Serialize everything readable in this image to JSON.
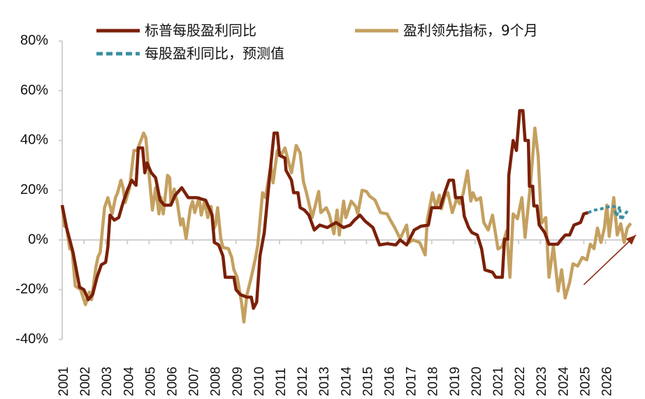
{
  "chart_data": {
    "type": "line",
    "title": "",
    "xlabel": "",
    "ylabel": "",
    "ylim": [
      -40,
      80
    ],
    "xlim": [
      2001,
      2027
    ],
    "y_ticks": [
      "80%",
      "60%",
      "40%",
      "20%",
      "0%",
      "-20%",
      "-40%"
    ],
    "y_tick_values": [
      80,
      60,
      40,
      20,
      0,
      -20,
      -40
    ],
    "x_ticks": [
      "2001",
      "2002",
      "2003",
      "2004",
      "2005",
      "2006",
      "2007",
      "2008",
      "2009",
      "2010",
      "2011",
      "2012",
      "2013",
      "2014",
      "2015",
      "2016",
      "2017",
      "2018",
      "2019",
      "2020",
      "2021",
      "2022",
      "2023",
      "2024",
      "2025",
      "2026"
    ],
    "grid": false,
    "legend_position": "top",
    "series": [
      {
        "name": "标普每股盈利同比",
        "color": "#7B2008",
        "style": "solid",
        "points": [
          [
            2001.0,
            14
          ],
          [
            2001.2,
            5
          ],
          [
            2001.5,
            -5
          ],
          [
            2001.8,
            -19
          ],
          [
            2002.0,
            -20
          ],
          [
            2002.2,
            -24
          ],
          [
            2002.4,
            -22
          ],
          [
            2002.6,
            -15
          ],
          [
            2002.8,
            -10
          ],
          [
            2003.0,
            -9
          ],
          [
            2003.1,
            -3
          ],
          [
            2003.2,
            10
          ],
          [
            2003.4,
            8
          ],
          [
            2003.6,
            9
          ],
          [
            2003.8,
            15
          ],
          [
            2004.0,
            20
          ],
          [
            2004.2,
            24
          ],
          [
            2004.4,
            22
          ],
          [
            2004.5,
            37
          ],
          [
            2004.7,
            37
          ],
          [
            2004.8,
            27
          ],
          [
            2004.9,
            31
          ],
          [
            2005.1,
            27
          ],
          [
            2005.3,
            25
          ],
          [
            2005.5,
            16
          ],
          [
            2005.7,
            14
          ],
          [
            2006.0,
            14
          ],
          [
            2006.2,
            18
          ],
          [
            2006.5,
            21
          ],
          [
            2006.8,
            17
          ],
          [
            2007.2,
            17
          ],
          [
            2007.6,
            16
          ],
          [
            2007.9,
            10
          ],
          [
            2008.0,
            -1
          ],
          [
            2008.2,
            -2
          ],
          [
            2008.4,
            -6.5
          ],
          [
            2008.5,
            -15
          ],
          [
            2008.9,
            -15
          ],
          [
            2009.0,
            -20
          ],
          [
            2009.2,
            -22
          ],
          [
            2009.5,
            -23
          ],
          [
            2009.7,
            -23
          ],
          [
            2009.8,
            -27.5
          ],
          [
            2009.95,
            -25
          ],
          [
            2010.1,
            -6.5
          ],
          [
            2010.3,
            3
          ],
          [
            2010.55,
            26
          ],
          [
            2010.75,
            43
          ],
          [
            2010.9,
            43
          ],
          [
            2011.0,
            34
          ],
          [
            2011.25,
            33
          ],
          [
            2011.3,
            28
          ],
          [
            2011.55,
            24
          ],
          [
            2011.65,
            19
          ],
          [
            2011.85,
            19
          ],
          [
            2011.95,
            13
          ],
          [
            2012.15,
            12
          ],
          [
            2012.35,
            10
          ],
          [
            2012.6,
            4
          ],
          [
            2012.85,
            6
          ],
          [
            2013.2,
            5
          ],
          [
            2013.6,
            7
          ],
          [
            2013.95,
            5
          ],
          [
            2014.25,
            6
          ],
          [
            2014.45,
            8
          ],
          [
            2014.7,
            10
          ],
          [
            2014.95,
            7.5
          ],
          [
            2015.3,
            5
          ],
          [
            2015.6,
            -2
          ],
          [
            2015.95,
            -1.5
          ],
          [
            2016.35,
            -2
          ],
          [
            2016.55,
            0
          ],
          [
            2016.85,
            -2
          ],
          [
            2017.2,
            4
          ],
          [
            2017.5,
            5.5
          ],
          [
            2017.85,
            6
          ],
          [
            2018.0,
            13
          ],
          [
            2018.4,
            13
          ],
          [
            2018.6,
            19
          ],
          [
            2018.8,
            24
          ],
          [
            2019.0,
            24
          ],
          [
            2019.1,
            17
          ],
          [
            2019.4,
            17
          ],
          [
            2019.5,
            9.5
          ],
          [
            2019.7,
            5
          ],
          [
            2019.85,
            3
          ],
          [
            2020.1,
            2
          ],
          [
            2020.3,
            -3.6
          ],
          [
            2020.45,
            -12
          ],
          [
            2020.8,
            -13
          ],
          [
            2020.95,
            -15
          ],
          [
            2021.25,
            -15
          ],
          [
            2021.35,
            0.3
          ],
          [
            2021.5,
            0.3
          ],
          [
            2021.55,
            26
          ],
          [
            2021.75,
            40
          ],
          [
            2021.9,
            36
          ],
          [
            2022.05,
            52
          ],
          [
            2022.2,
            52
          ],
          [
            2022.3,
            40
          ],
          [
            2022.45,
            40
          ],
          [
            2022.5,
            21.6
          ],
          [
            2022.65,
            21.6
          ],
          [
            2022.7,
            13.7
          ],
          [
            2022.85,
            13.7
          ],
          [
            2022.95,
            6
          ],
          [
            2023.2,
            3
          ],
          [
            2023.4,
            -1.7
          ],
          [
            2023.8,
            -1.7
          ],
          [
            2023.95,
            0
          ],
          [
            2024.15,
            2
          ],
          [
            2024.35,
            2
          ],
          [
            2024.55,
            6
          ],
          [
            2024.85,
            7
          ],
          [
            2025.0,
            10.5
          ],
          [
            2025.2,
            11
          ]
        ]
      },
      {
        "name": "盈利领先指标，9个月",
        "color": "#C4A060",
        "style": "solid",
        "points": [
          [
            2001.0,
            14
          ],
          [
            2001.1,
            5.6
          ],
          [
            2001.2,
            5
          ],
          [
            2001.35,
            -3.6
          ],
          [
            2001.45,
            -3.6
          ],
          [
            2001.6,
            -18.5
          ],
          [
            2001.85,
            -20
          ],
          [
            2002.07,
            -26
          ],
          [
            2002.25,
            -21
          ],
          [
            2002.35,
            -24
          ],
          [
            2002.55,
            -11
          ],
          [
            2002.65,
            -6.8
          ],
          [
            2002.75,
            -5
          ],
          [
            2002.95,
            13
          ],
          [
            2003.1,
            17
          ],
          [
            2003.3,
            10.5
          ],
          [
            2003.45,
            17
          ],
          [
            2003.55,
            19
          ],
          [
            2003.7,
            24
          ],
          [
            2003.8,
            21
          ],
          [
            2003.9,
            15
          ],
          [
            2004.1,
            21
          ],
          [
            2004.3,
            36
          ],
          [
            2004.45,
            36
          ],
          [
            2004.75,
            43
          ],
          [
            2004.85,
            41
          ],
          [
            2005.0,
            26
          ],
          [
            2005.15,
            12
          ],
          [
            2005.3,
            21
          ],
          [
            2005.45,
            10.5
          ],
          [
            2005.55,
            17
          ],
          [
            2005.65,
            10.5
          ],
          [
            2005.85,
            26
          ],
          [
            2005.95,
            25
          ],
          [
            2006.0,
            15
          ],
          [
            2006.15,
            20.5
          ],
          [
            2006.3,
            15
          ],
          [
            2006.45,
            6
          ],
          [
            2006.55,
            8.5
          ],
          [
            2006.7,
            0.6
          ],
          [
            2006.9,
            13
          ],
          [
            2007.0,
            15.5
          ],
          [
            2007.1,
            11
          ],
          [
            2007.3,
            17
          ],
          [
            2007.4,
            10
          ],
          [
            2007.55,
            15.5
          ],
          [
            2007.7,
            9
          ],
          [
            2007.85,
            13.5
          ],
          [
            2007.95,
            4
          ],
          [
            2008.05,
            6
          ],
          [
            2008.15,
            13
          ],
          [
            2008.3,
            0.4
          ],
          [
            2008.4,
            -3
          ],
          [
            2008.65,
            -3.5
          ],
          [
            2008.8,
            -7
          ],
          [
            2008.9,
            -12
          ],
          [
            2009.05,
            -15
          ],
          [
            2009.25,
            -25
          ],
          [
            2009.36,
            -33
          ],
          [
            2009.5,
            -22
          ],
          [
            2009.7,
            -15
          ],
          [
            2009.9,
            -7
          ],
          [
            2010.0,
            -2
          ],
          [
            2010.22,
            19
          ],
          [
            2010.35,
            17
          ],
          [
            2010.6,
            30
          ],
          [
            2010.7,
            23
          ],
          [
            2010.9,
            36
          ],
          [
            2011.1,
            34.5
          ],
          [
            2011.25,
            37
          ],
          [
            2011.4,
            32
          ],
          [
            2011.55,
            27
          ],
          [
            2011.77,
            38
          ],
          [
            2011.95,
            35
          ],
          [
            2012.1,
            23.5
          ],
          [
            2012.25,
            18.6
          ],
          [
            2012.4,
            13
          ],
          [
            2012.5,
            9
          ],
          [
            2012.65,
            14
          ],
          [
            2012.8,
            19.5
          ],
          [
            2012.9,
            11
          ],
          [
            2013.15,
            13
          ],
          [
            2013.3,
            10
          ],
          [
            2013.5,
            2.5
          ],
          [
            2013.65,
            12
          ],
          [
            2013.75,
            2
          ],
          [
            2013.95,
            15.6
          ],
          [
            2014.05,
            9
          ],
          [
            2014.3,
            15.6
          ],
          [
            2014.5,
            13.5
          ],
          [
            2014.6,
            10.5
          ],
          [
            2014.8,
            20
          ],
          [
            2015.0,
            19.5
          ],
          [
            2015.15,
            17.6
          ],
          [
            2015.4,
            16
          ],
          [
            2015.65,
            11
          ],
          [
            2015.95,
            10.5
          ],
          [
            2016.1,
            8
          ],
          [
            2016.3,
            5
          ],
          [
            2016.55,
            0.5
          ],
          [
            2016.85,
            6
          ],
          [
            2016.95,
            -1
          ],
          [
            2017.15,
            0
          ],
          [
            2017.45,
            -1
          ],
          [
            2017.7,
            -6
          ],
          [
            2017.8,
            8
          ],
          [
            2018.04,
            19
          ],
          [
            2018.2,
            13
          ],
          [
            2018.35,
            18
          ],
          [
            2018.45,
            12.5
          ],
          [
            2018.6,
            17.5
          ],
          [
            2018.75,
            19
          ],
          [
            2018.95,
            11
          ],
          [
            2019.15,
            16.5
          ],
          [
            2019.3,
            14.5
          ],
          [
            2019.45,
            18.6
          ],
          [
            2019.65,
            27.8
          ],
          [
            2019.8,
            15.6
          ],
          [
            2019.9,
            19
          ],
          [
            2020.05,
            16
          ],
          [
            2020.25,
            17
          ],
          [
            2020.4,
            7
          ],
          [
            2020.6,
            4
          ],
          [
            2020.8,
            10
          ],
          [
            2021.05,
            -3.6
          ],
          [
            2021.25,
            -2.6
          ],
          [
            2021.45,
            3.7
          ],
          [
            2021.6,
            -15
          ],
          [
            2021.75,
            10.5
          ],
          [
            2021.95,
            8.5
          ],
          [
            2022.15,
            17
          ],
          [
            2022.3,
            1
          ],
          [
            2022.55,
            22.6
          ],
          [
            2022.75,
            45
          ],
          [
            2022.9,
            34
          ],
          [
            2023.05,
            6.7
          ],
          [
            2023.25,
            9
          ],
          [
            2023.4,
            -15
          ],
          [
            2023.6,
            -2.5
          ],
          [
            2023.82,
            -20.5
          ],
          [
            2023.98,
            -12
          ],
          [
            2024.14,
            -23.3
          ],
          [
            2024.35,
            -17
          ],
          [
            2024.5,
            -9.6
          ],
          [
            2024.72,
            -10.5
          ],
          [
            2024.93,
            -7
          ],
          [
            2025.14,
            -8
          ],
          [
            2025.3,
            -1.7
          ],
          [
            2025.47,
            -3.5
          ],
          [
            2025.63,
            4.8
          ],
          [
            2025.79,
            -1
          ],
          [
            2025.95,
            4.8
          ],
          [
            2026.06,
            14
          ],
          [
            2026.17,
            1.5
          ],
          [
            2026.38,
            17
          ],
          [
            2026.54,
            2
          ],
          [
            2026.7,
            6.5
          ],
          [
            2026.86,
            -1
          ],
          [
            2027.0,
            4.8
          ],
          [
            2027.16,
            6.7
          ]
        ]
      },
      {
        "name": "每股盈利同比，预测值",
        "color": "#3A8FA0",
        "style": "dashed",
        "points": [
          [
            2025.2,
            11
          ],
          [
            2025.5,
            12
          ],
          [
            2025.8,
            12.5
          ],
          [
            2026.2,
            13.5
          ],
          [
            2026.4,
            13.5
          ],
          [
            2026.5,
            9.5
          ],
          [
            2026.65,
            13.5
          ],
          [
            2026.7,
            8
          ],
          [
            2026.9,
            10.5
          ],
          [
            2027.1,
            12.5
          ]
        ]
      }
    ],
    "annotations": [
      {
        "type": "arrow",
        "from": [
          2025.0,
          -18
        ],
        "to": [
          2027.4,
          2
        ],
        "color": "#8B2A12"
      }
    ]
  }
}
